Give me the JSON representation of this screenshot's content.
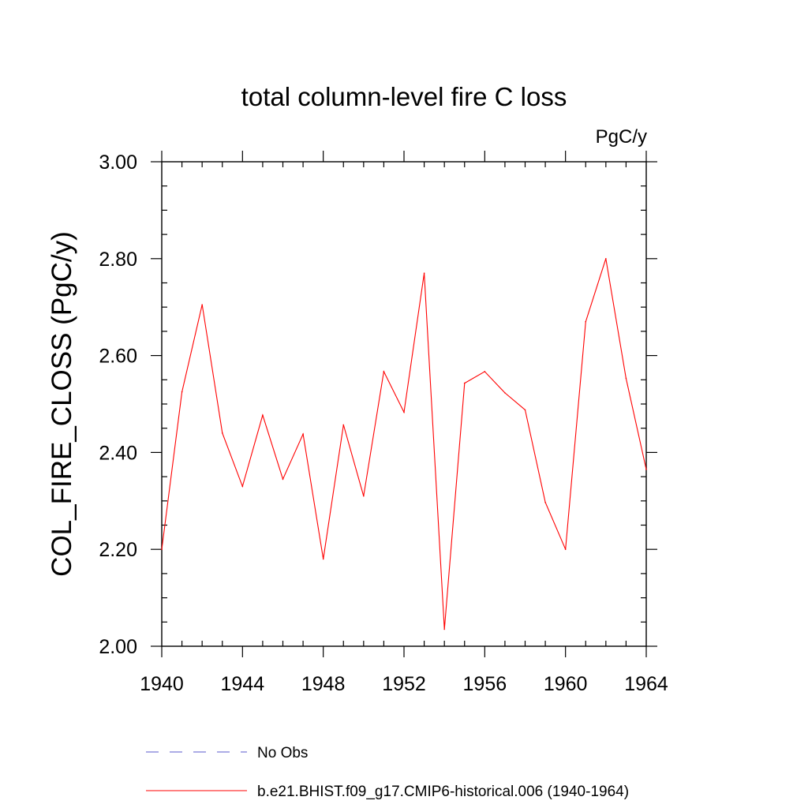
{
  "chart_data": {
    "type": "line",
    "title": "total column-level fire C loss",
    "units_label": "PgC/y",
    "xlabel": "",
    "ylabel": "COL_FIRE_CLOSS  (PgC/y)",
    "xlim": [
      1940,
      1964
    ],
    "ylim": [
      2.0,
      3.0
    ],
    "x_ticks": [
      "1940",
      "1944",
      "1948",
      "1952",
      "1956",
      "1960",
      "1964"
    ],
    "y_ticks": [
      "2.00",
      "2.20",
      "2.40",
      "2.60",
      "2.80",
      "3.00"
    ],
    "x": [
      1940,
      1941,
      1942,
      1943,
      1944,
      1945,
      1946,
      1947,
      1948,
      1949,
      1950,
      1951,
      1952,
      1953,
      1954,
      1955,
      1956,
      1957,
      1958,
      1959,
      1960,
      1961,
      1962,
      1963,
      1964
    ],
    "series": [
      {
        "name": "b.e21.BHIST.f09_g17.CMIP6-historical.006 (1940-1964)",
        "color": "#ff0000",
        "style": "solid",
        "values": [
          2.2,
          2.525,
          2.705,
          2.44,
          2.33,
          2.477,
          2.345,
          2.438,
          2.18,
          2.457,
          2.31,
          2.567,
          2.483,
          2.77,
          2.035,
          2.543,
          2.567,
          2.523,
          2.488,
          2.297,
          2.2,
          2.67,
          2.8,
          2.553,
          2.365
        ]
      }
    ],
    "legend": [
      {
        "label": "No Obs",
        "color": "#5a5acc",
        "style": "dashed"
      },
      {
        "label": "b.e21.BHIST.f09_g17.CMIP6-historical.006 (1940-1964)",
        "color": "#ff0000",
        "style": "solid"
      }
    ],
    "legend_position": "bottom",
    "grid": false
  }
}
